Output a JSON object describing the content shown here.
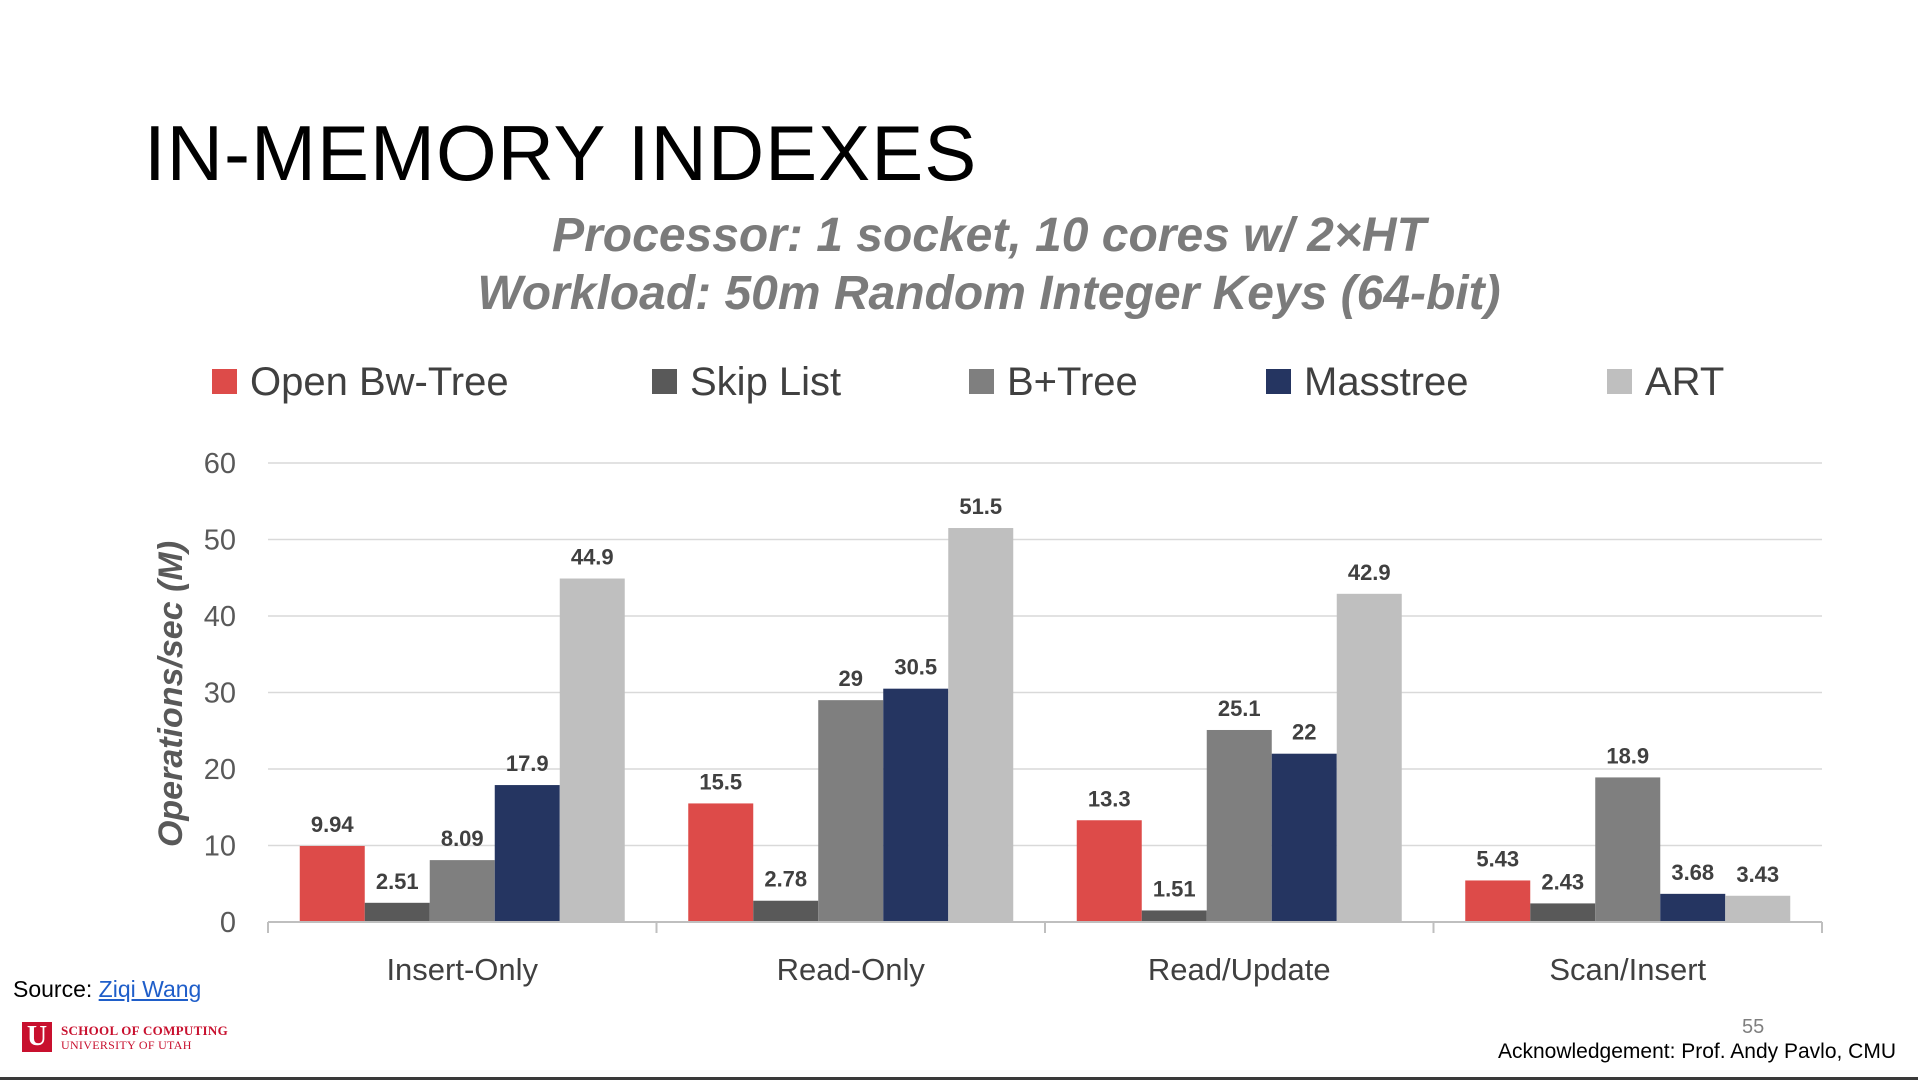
{
  "slide": {
    "title": "IN-MEMORY INDEXES",
    "subtitle_line1": "Processor: 1 socket, 10 cores w/ 2×HT",
    "subtitle_line2": "Workload: 50m Random Integer Keys (64-bit)",
    "source_label": "Source: ",
    "source_link": "Ziqi Wang",
    "logo_line1": "SCHOOL OF COMPUTING",
    "logo_line2": "UNIVERSITY OF UTAH",
    "logo_letter": "U",
    "page_number": "55",
    "acknowledgement": "Acknowledgement: Prof. Andy Pavlo, CMU"
  },
  "chart_data": {
    "type": "bar",
    "title": "",
    "xlabel": "",
    "ylabel": "Operations/sec (M)",
    "ylim": [
      0,
      60
    ],
    "yticks": [
      0,
      10,
      20,
      30,
      40,
      50,
      60
    ],
    "grid": true,
    "legend_position": "top",
    "categories": [
      "Insert-Only",
      "Read-Only",
      "Read/Update",
      "Scan/Insert"
    ],
    "series": [
      {
        "name": "Open Bw-Tree",
        "color": "#dd4b49",
        "values": [
          9.94,
          15.5,
          13.3,
          5.43
        ]
      },
      {
        "name": "Skip List",
        "color": "#595959",
        "values": [
          2.51,
          2.78,
          1.51,
          2.43
        ]
      },
      {
        "name": "B+Tree",
        "color": "#7f7f7f",
        "values": [
          8.09,
          29,
          25.1,
          18.9
        ]
      },
      {
        "name": "Masstree",
        "color": "#253561",
        "values": [
          17.9,
          30.5,
          22,
          3.68
        ]
      },
      {
        "name": "ART",
        "color": "#bfbfbf",
        "values": [
          44.9,
          51.5,
          42.9,
          3.43
        ]
      }
    ]
  }
}
